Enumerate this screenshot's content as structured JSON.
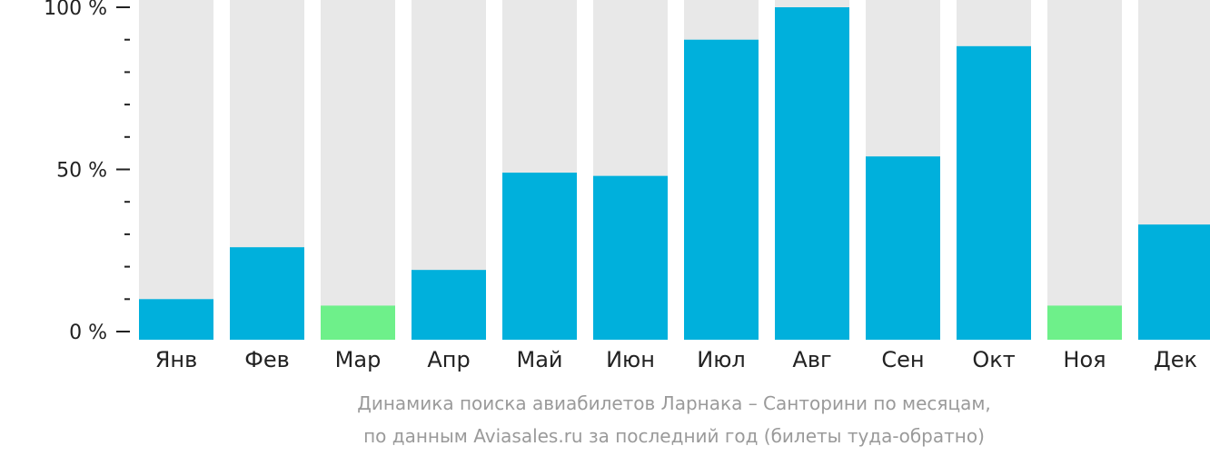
{
  "chart_data": {
    "type": "bar",
    "categories": [
      "Янв",
      "Фев",
      "Мар",
      "Апр",
      "Май",
      "Июн",
      "Июл",
      "Авг",
      "Сен",
      "Окт",
      "Ноя",
      "Дек"
    ],
    "values": [
      10,
      26,
      8,
      19,
      49,
      48,
      90,
      100,
      54,
      88,
      8,
      33
    ],
    "ylim": [
      0,
      100
    ],
    "yticks": [
      {
        "value": 0,
        "label": "0 %"
      },
      {
        "value": 50,
        "label": "50 %"
      },
      {
        "value": 100,
        "label": "100 %"
      }
    ],
    "minor_ticks_between_major": 4,
    "highlight": [
      "Мар",
      "Ноя"
    ],
    "caption": [
      "Динамика поиска авиабилетов Ларнака – Санторини по месяцам,",
      "по данным Aviasales.ru за последний год (билеты туда-обратно)"
    ],
    "colors": {
      "bar": "#00b0dc",
      "highlight_bar": "#6ef08a",
      "background_bar": "#e8e8e8",
      "axis": "#222222",
      "caption": "#9a9a9a"
    },
    "grid": false,
    "legend": "none"
  }
}
